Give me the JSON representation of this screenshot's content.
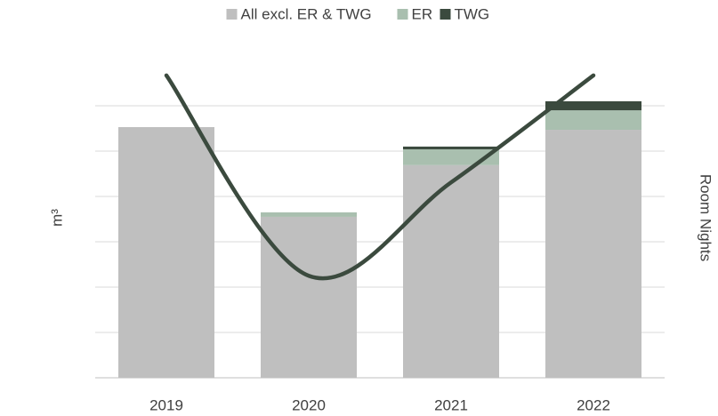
{
  "chart_data": {
    "type": "bar",
    "stacked": true,
    "categories": [
      "2019",
      "2020",
      "2021",
      "2022"
    ],
    "series": [
      {
        "name": "All excl. ER & TWG",
        "color": "#bfbfbf",
        "values": [
          5.53,
          3.55,
          4.69,
          5.47
        ]
      },
      {
        "name": "ER",
        "color": "#a9bfaf",
        "values": [
          0,
          0.1,
          0.35,
          0.43
        ]
      },
      {
        "name": "TWG",
        "color": "#3b4a3e",
        "values": [
          0,
          0,
          0.06,
          0.2
        ]
      },
      {
        "type": "line",
        "axis": "y2",
        "color": "#3b4a3e",
        "values": [
          6.67,
          2.25,
          4.31,
          6.67
        ]
      }
    ],
    "ylabel": "m³",
    "y2label": "Room Nights",
    "ylim": [
      0,
      7
    ],
    "yticks": [
      0,
      1,
      2,
      3,
      4,
      5,
      6
    ],
    "y2lim": [
      0,
      7
    ],
    "grid": true,
    "legend": "top"
  }
}
